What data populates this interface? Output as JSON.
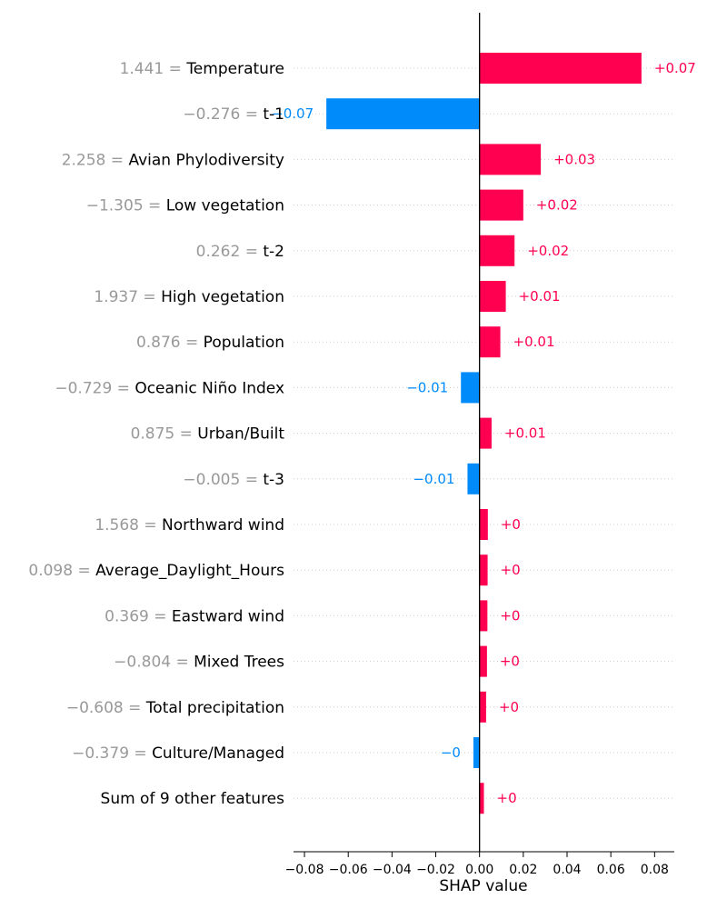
{
  "chart_data": {
    "type": "bar",
    "orientation": "horizontal",
    "title": "",
    "xlabel": "SHAP value",
    "ylabel": "",
    "xlim": [
      -0.085,
      0.089
    ],
    "xticks": [
      -0.08,
      -0.06,
      -0.04,
      -0.02,
      0.0,
      0.02,
      0.04,
      0.06,
      0.08
    ],
    "xtick_labels": [
      "−0.08",
      "−0.06",
      "−0.04",
      "−0.02",
      "0.00",
      "0.02",
      "0.04",
      "0.06",
      "0.08"
    ],
    "grid": "dotted horizontal guide lines per feature",
    "colors": {
      "positive": "#ff0051",
      "negative": "#008bfb",
      "feature_value": "#999999",
      "feature_name": "#000000"
    },
    "features": [
      {
        "value_text": "1.441 = ",
        "name": "Temperature",
        "shap": 0.074,
        "label": "+0.07"
      },
      {
        "value_text": "−0.276 = ",
        "name": "t-1",
        "shap": -0.07,
        "label": "−0.07"
      },
      {
        "value_text": "2.258 = ",
        "name": "Avian Phylodiversity",
        "shap": 0.028,
        "label": "+0.03"
      },
      {
        "value_text": "−1.305 = ",
        "name": "Low vegetation",
        "shap": 0.02,
        "label": "+0.02"
      },
      {
        "value_text": "0.262 = ",
        "name": "t-2",
        "shap": 0.016,
        "label": "+0.02"
      },
      {
        "value_text": "1.937 = ",
        "name": "High vegetation",
        "shap": 0.012,
        "label": "+0.01"
      },
      {
        "value_text": "0.876 = ",
        "name": "Population",
        "shap": 0.0095,
        "label": "+0.01"
      },
      {
        "value_text": "−0.729 = ",
        "name": "Oceanic Niño Index",
        "shap": -0.0085,
        "label": "−0.01"
      },
      {
        "value_text": "0.875 = ",
        "name": "Urban/Built",
        "shap": 0.0055,
        "label": "+0.01"
      },
      {
        "value_text": "−0.005 = ",
        "name": "t-3",
        "shap": -0.0055,
        "label": "−0.01"
      },
      {
        "value_text": "1.568 = ",
        "name": "Northward wind",
        "shap": 0.0038,
        "label": "+0"
      },
      {
        "value_text": "0.098 = ",
        "name": "Average_Daylight_Hours",
        "shap": 0.0037,
        "label": "+0"
      },
      {
        "value_text": "0.369 = ",
        "name": "Eastward wind",
        "shap": 0.0036,
        "label": "+0"
      },
      {
        "value_text": "−0.804 = ",
        "name": "Mixed Trees",
        "shap": 0.0034,
        "label": "+0"
      },
      {
        "value_text": "−0.608 = ",
        "name": "Total precipitation",
        "shap": 0.003,
        "label": "+0"
      },
      {
        "value_text": "−0.379 = ",
        "name": "Culture/Managed",
        "shap": -0.0028,
        "label": "−0"
      },
      {
        "value_text": "",
        "name": "Sum of 9 other features",
        "shap": 0.002,
        "label": "+0"
      }
    ]
  }
}
